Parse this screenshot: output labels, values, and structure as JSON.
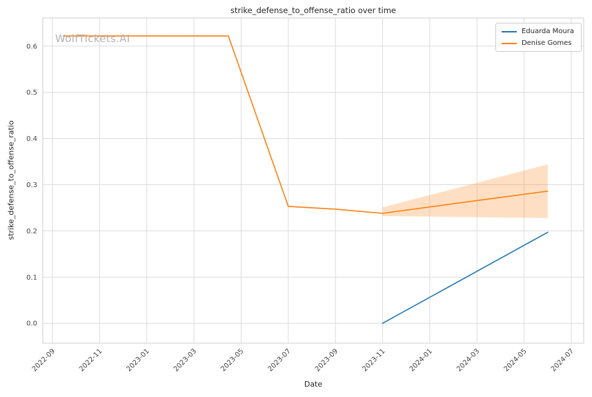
{
  "watermark": "WolfTickets.AI",
  "legend": {
    "position": "upper right",
    "items": [
      {
        "label": "Eduarda Moura",
        "color": "#1f77b4"
      },
      {
        "label": "Denise Gomes",
        "color": "#ff7f0e"
      }
    ]
  },
  "chart_data": {
    "type": "line",
    "title": "strike_defense_to_offense_ratio over time",
    "xlabel": "Date",
    "ylabel": "strike_defense_to_offense_ratio",
    "x_tick_labels": [
      "2022-09",
      "2022-11",
      "2023-01",
      "2023-03",
      "2023-05",
      "2023-07",
      "2023-09",
      "2023-11",
      "2024-01",
      "2024-03",
      "2024-05",
      "2024-07"
    ],
    "y_ticks": [
      0.0,
      0.1,
      0.2,
      0.3,
      0.4,
      0.5,
      0.6
    ],
    "xlim": [
      "2022-08-19",
      "2024-07-17"
    ],
    "ylim": [
      -0.043,
      0.661
    ],
    "grid": true,
    "grid_color": "#dcdcdc",
    "border_color": "#cccccc",
    "legend_position": "upper right",
    "series": [
      {
        "name": "Eduarda Moura",
        "color": "#1f77b4",
        "points": [
          {
            "date": "2023-11-01",
            "value": 0.0
          },
          {
            "date": "2024-06-01",
            "value": 0.197
          }
        ]
      },
      {
        "name": "Denise Gomes",
        "color": "#ff7f0e",
        "points": [
          {
            "date": "2022-09-15",
            "value": 0.622
          },
          {
            "date": "2023-04-15",
            "value": 0.622
          },
          {
            "date": "2023-07-01",
            "value": 0.253
          },
          {
            "date": "2023-09-01",
            "value": 0.247
          },
          {
            "date": "2023-11-01",
            "value": 0.238
          },
          {
            "date": "2024-02-15",
            "value": 0.262
          },
          {
            "date": "2024-06-01",
            "value": 0.286
          }
        ],
        "band": [
          {
            "date": "2023-11-01",
            "lower": 0.232,
            "upper": 0.251
          },
          {
            "date": "2024-06-01",
            "lower": 0.228,
            "upper": 0.344
          }
        ],
        "band_opacity": 0.25
      }
    ]
  }
}
